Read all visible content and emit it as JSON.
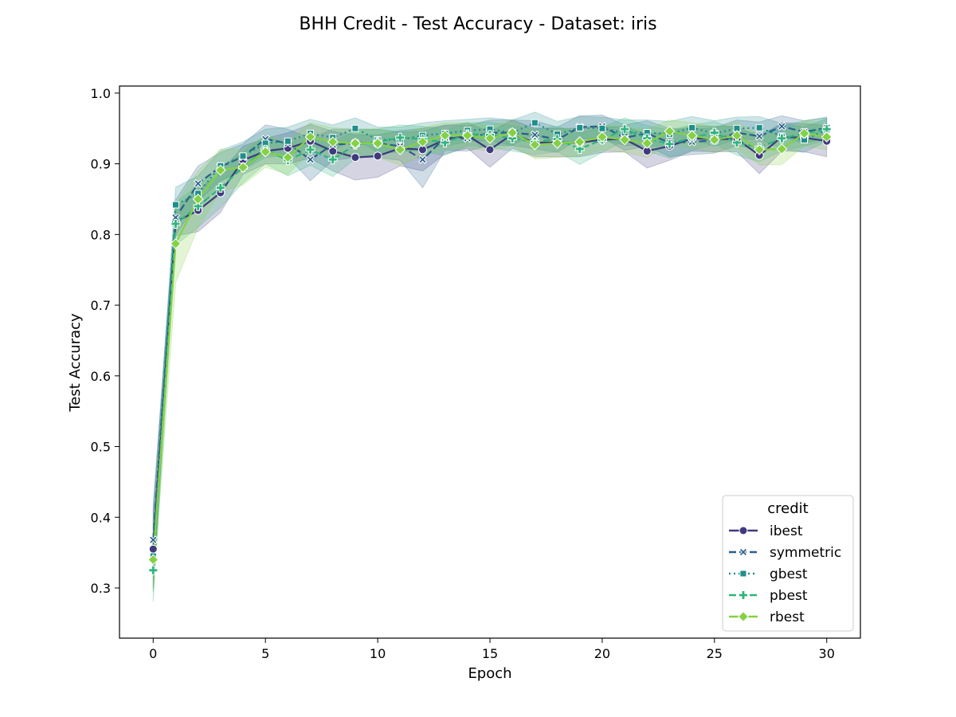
{
  "chart_data": {
    "type": "line",
    "title": "BHH Credit - Test Accuracy - Dataset: iris",
    "xlabel": "Epoch",
    "ylabel": "Test Accuracy",
    "xlim": [
      -1.5,
      31.5
    ],
    "ylim": [
      0.229,
      1.01
    ],
    "xticks": [
      0,
      5,
      10,
      15,
      20,
      25,
      30
    ],
    "yticks": [
      0.3,
      0.4,
      0.5,
      0.6,
      0.7,
      0.8,
      0.9,
      1.0
    ],
    "xtick_labels": [
      "0",
      "5",
      "10",
      "15",
      "20",
      "25",
      "30"
    ],
    "ytick_labels": [
      "0.3",
      "0.4",
      "0.5",
      "0.6",
      "0.7",
      "0.8",
      "0.9",
      "1.0"
    ],
    "grid": false,
    "legend": {
      "title": "credit",
      "placement": "lower-right"
    },
    "x": [
      0,
      1,
      2,
      3,
      4,
      5,
      6,
      7,
      8,
      9,
      10,
      11,
      12,
      13,
      14,
      15,
      16,
      17,
      18,
      19,
      20,
      21,
      22,
      23,
      24,
      25,
      26,
      27,
      28,
      29,
      30
    ],
    "series": [
      {
        "name": "ibest",
        "color": "#3f3a7e",
        "dash": "solid",
        "marker": "circle",
        "values": [
          0.355,
          0.818,
          0.834,
          0.859,
          0.905,
          0.918,
          0.922,
          0.932,
          0.918,
          0.909,
          0.911,
          0.922,
          0.92,
          0.934,
          0.94,
          0.92,
          0.942,
          0.93,
          0.93,
          0.93,
          0.934,
          0.935,
          0.918,
          0.925,
          0.936,
          0.935,
          0.935,
          0.912,
          0.938,
          0.937,
          0.932
        ],
        "band": [
          0.055,
          0.02,
          0.03,
          0.028,
          0.02,
          0.018,
          0.022,
          0.024,
          0.028,
          0.032,
          0.03,
          0.025,
          0.03,
          0.02,
          0.018,
          0.025,
          0.02,
          0.02,
          0.02,
          0.02,
          0.018,
          0.018,
          0.024,
          0.02,
          0.018,
          0.018,
          0.018,
          0.026,
          0.02,
          0.02,
          0.022
        ]
      },
      {
        "name": "symmetric",
        "color": "#2a5f8b",
        "dash": "dashed",
        "marker": "x",
        "values": [
          0.368,
          0.824,
          0.872,
          0.896,
          0.91,
          0.935,
          0.929,
          0.906,
          0.927,
          0.929,
          0.929,
          0.925,
          0.906,
          0.937,
          0.936,
          0.944,
          0.944,
          0.941,
          0.934,
          0.952,
          0.953,
          0.937,
          0.943,
          0.93,
          0.931,
          0.933,
          0.944,
          0.939,
          0.953,
          0.945,
          0.951
        ],
        "band": [
          0.05,
          0.025,
          0.025,
          0.02,
          0.018,
          0.02,
          0.02,
          0.03,
          0.022,
          0.02,
          0.02,
          0.02,
          0.04,
          0.018,
          0.018,
          0.018,
          0.018,
          0.02,
          0.018,
          0.016,
          0.016,
          0.018,
          0.018,
          0.02,
          0.018,
          0.018,
          0.018,
          0.02,
          0.015,
          0.016,
          0.015
        ]
      },
      {
        "name": "gbest",
        "color": "#1f8e8a",
        "dash": "dotted",
        "marker": "square",
        "values": [
          0.345,
          0.842,
          0.858,
          0.897,
          0.911,
          0.929,
          0.932,
          0.943,
          0.937,
          0.95,
          0.934,
          0.934,
          0.94,
          0.943,
          0.947,
          0.949,
          0.944,
          0.958,
          0.942,
          0.951,
          0.95,
          0.944,
          0.944,
          0.942,
          0.951,
          0.943,
          0.95,
          0.951,
          0.939,
          0.934,
          0.948
        ],
        "band": [
          0.05,
          0.025,
          0.025,
          0.022,
          0.02,
          0.02,
          0.02,
          0.02,
          0.018,
          0.015,
          0.018,
          0.018,
          0.018,
          0.018,
          0.016,
          0.016,
          0.018,
          0.015,
          0.018,
          0.016,
          0.016,
          0.018,
          0.018,
          0.018,
          0.016,
          0.018,
          0.016,
          0.016,
          0.018,
          0.018,
          0.016
        ]
      },
      {
        "name": "pbest",
        "color": "#2fb47c",
        "dash": "dashed",
        "marker": "plus",
        "values": [
          0.325,
          0.815,
          0.84,
          0.866,
          0.895,
          0.92,
          0.905,
          0.92,
          0.906,
          0.927,
          0.931,
          0.937,
          0.935,
          0.93,
          0.942,
          0.941,
          0.936,
          0.931,
          0.935,
          0.921,
          0.934,
          0.949,
          0.936,
          0.928,
          0.937,
          0.944,
          0.93,
          0.923,
          0.936,
          0.943,
          0.949
        ],
        "band": [
          0.045,
          0.03,
          0.03,
          0.028,
          0.022,
          0.02,
          0.022,
          0.022,
          0.024,
          0.02,
          0.018,
          0.018,
          0.018,
          0.018,
          0.016,
          0.018,
          0.018,
          0.018,
          0.018,
          0.022,
          0.018,
          0.016,
          0.018,
          0.02,
          0.018,
          0.016,
          0.018,
          0.02,
          0.018,
          0.018,
          0.016
        ]
      },
      {
        "name": "rbest",
        "color": "#84d144",
        "dash": "solid",
        "marker": "diamond",
        "values": [
          0.34,
          0.787,
          0.85,
          0.891,
          0.895,
          0.917,
          0.909,
          0.938,
          0.931,
          0.929,
          0.929,
          0.92,
          0.931,
          0.94,
          0.94,
          0.936,
          0.944,
          0.927,
          0.929,
          0.931,
          0.938,
          0.934,
          0.929,
          0.946,
          0.94,
          0.934,
          0.94,
          0.92,
          0.921,
          0.943,
          0.938
        ],
        "band": [
          0.045,
          0.055,
          0.04,
          0.03,
          0.025,
          0.022,
          0.024,
          0.02,
          0.02,
          0.02,
          0.02,
          0.022,
          0.02,
          0.018,
          0.018,
          0.018,
          0.018,
          0.02,
          0.02,
          0.02,
          0.018,
          0.018,
          0.02,
          0.016,
          0.018,
          0.018,
          0.018,
          0.022,
          0.022,
          0.018,
          0.018
        ]
      }
    ]
  }
}
